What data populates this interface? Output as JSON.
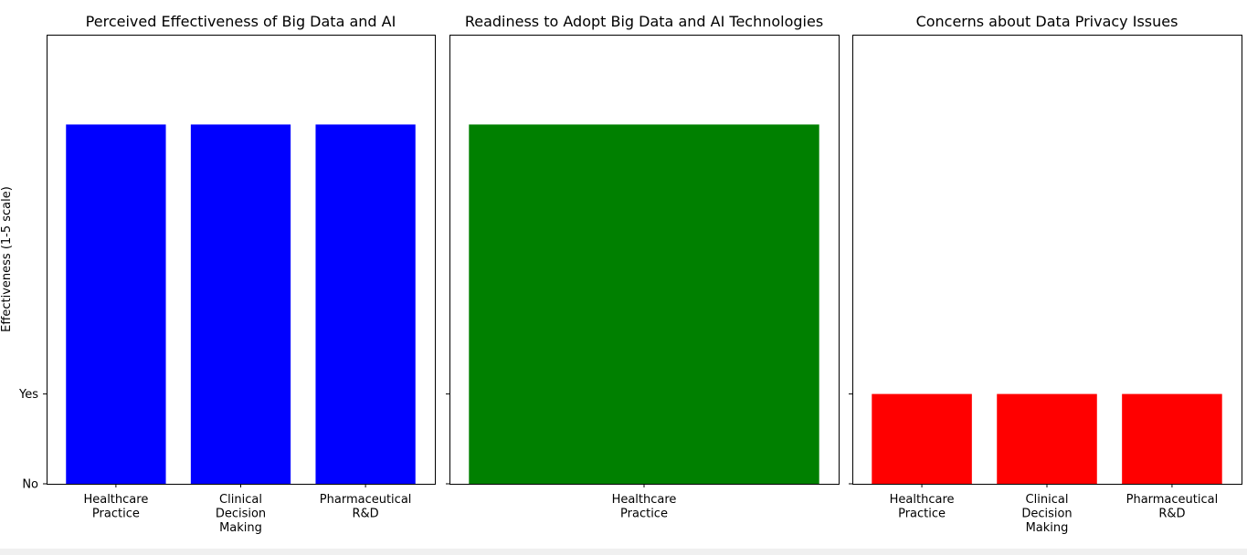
{
  "chart_data": [
    {
      "type": "bar",
      "title": "Perceived Effectiveness of Big Data and AI",
      "ylabel": "Effectiveness (1-5 scale)",
      "categories": [
        "Healthcare\nPractice",
        "Clinical\nDecision\nMaking",
        "Pharmaceutical\nR&D"
      ],
      "values": [
        4,
        4,
        4
      ],
      "color": "#0000ff",
      "ylim": [
        0,
        5
      ],
      "yticks": [
        {
          "value": 0,
          "label": "No"
        },
        {
          "value": 1,
          "label": "Yes"
        }
      ],
      "show_ytick_labels": true
    },
    {
      "type": "bar",
      "title": "Readiness to Adopt Big Data and AI Technologies",
      "categories": [
        "Healthcare\nPractice"
      ],
      "values": [
        4
      ],
      "color": "#008000",
      "ylim": [
        0,
        5
      ],
      "yticks": [
        {
          "value": 0,
          "label": "No"
        },
        {
          "value": 1,
          "label": "Yes"
        }
      ],
      "show_ytick_labels": false
    },
    {
      "type": "bar",
      "title": "Concerns about Data Privacy Issues",
      "categories": [
        "Healthcare\nPractice",
        "Clinical\nDecision\nMaking",
        "Pharmaceutical\nR&D"
      ],
      "values": [
        1,
        1,
        1
      ],
      "color": "#ff0000",
      "ylim": [
        0,
        5
      ],
      "yticks": [
        {
          "value": 0,
          "label": "No"
        },
        {
          "value": 1,
          "label": "Yes"
        }
      ],
      "show_ytick_labels": false
    }
  ]
}
